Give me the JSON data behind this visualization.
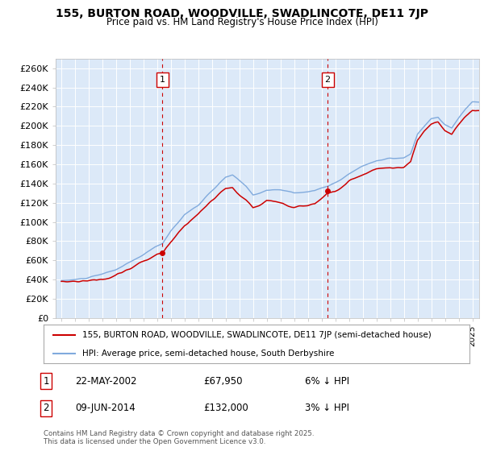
{
  "title": "155, BURTON ROAD, WOODVILLE, SWADLINCOTE, DE11 7JP",
  "subtitle": "Price paid vs. HM Land Registry's House Price Index (HPI)",
  "legend_line1": "155, BURTON ROAD, WOODVILLE, SWADLINCOTE, DE11 7JP (semi-detached house)",
  "legend_line2": "HPI: Average price, semi-detached house, South Derbyshire",
  "annotation1": {
    "label": "1",
    "date_year": 2002.38,
    "price": 67950,
    "text": "22-MAY-2002",
    "price_text": "£67,950",
    "pct_text": "6% ↓ HPI"
  },
  "annotation2": {
    "label": "2",
    "date_year": 2014.44,
    "price": 132000,
    "text": "09-JUN-2014",
    "price_text": "£132,000",
    "pct_text": "3% ↓ HPI"
  },
  "copyright_text": "Contains HM Land Registry data © Crown copyright and database right 2025.\nThis data is licensed under the Open Government Licence v3.0.",
  "ylim": [
    0,
    270000
  ],
  "yticks": [
    0,
    20000,
    40000,
    60000,
    80000,
    100000,
    120000,
    140000,
    160000,
    180000,
    200000,
    220000,
    240000,
    260000
  ],
  "plot_bg": "#dce9f8",
  "line_color_property": "#cc0000",
  "line_color_hpi": "#80aadd",
  "grid_color": "#ffffff",
  "dot_color_property": "#cc0000"
}
